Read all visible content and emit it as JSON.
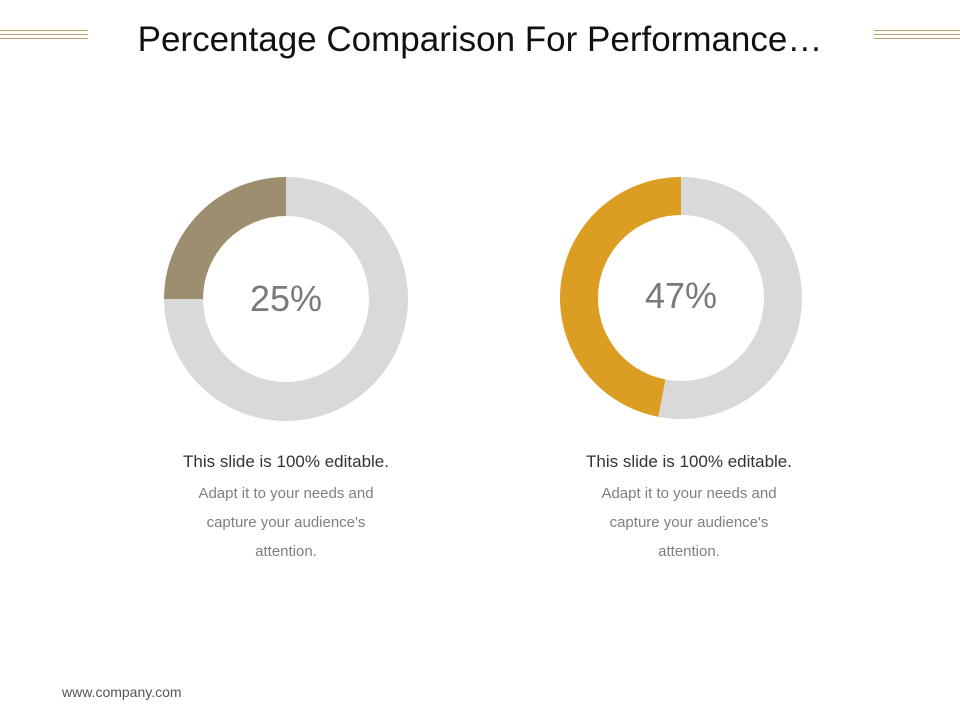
{
  "slide": {
    "title": "Percentage Comparison For Performance…",
    "footer": "www.company.com",
    "accent_line_color": "#b8a06a"
  },
  "chart_data": [
    {
      "type": "pie",
      "variant": "donut",
      "values": [
        25,
        75
      ],
      "center_label": "25%",
      "colors": [
        "#9e8e70",
        "#d9d9d9"
      ]
    },
    {
      "type": "pie",
      "variant": "donut",
      "values": [
        47,
        53
      ],
      "center_label": "47%",
      "colors": [
        "#dc9e22",
        "#d9d9d9"
      ]
    }
  ],
  "captions": [
    {
      "heading": "This slide is 100% editable.",
      "body": "Adapt it to your needs and capture your audience's attention."
    },
    {
      "heading": "This slide is 100% editable.",
      "body": "Adapt it to your needs and capture your audience's attention."
    }
  ]
}
